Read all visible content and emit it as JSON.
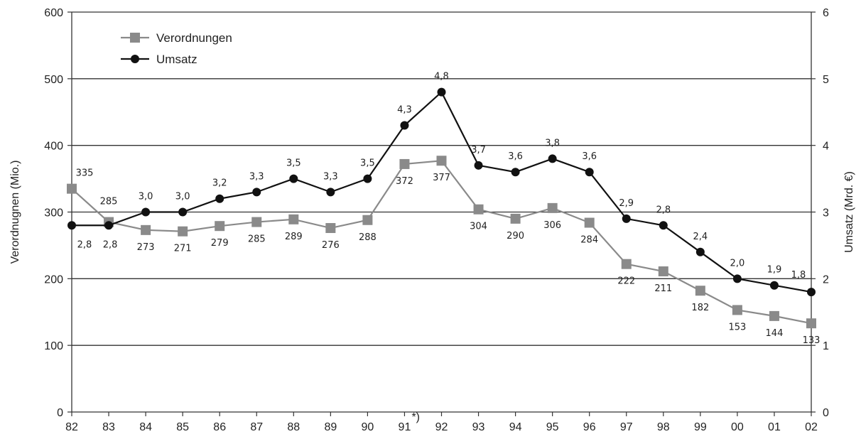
{
  "chart_data": {
    "type": "line",
    "categories": [
      "82",
      "83",
      "84",
      "85",
      "86",
      "87",
      "88",
      "89",
      "90",
      "91",
      "92",
      "93",
      "94",
      "95",
      "96",
      "97",
      "98",
      "99",
      "00",
      "01",
      "02"
    ],
    "footnote_marker": "*)",
    "footnote_category_index": 9,
    "series": [
      {
        "name": "Verordnungen",
        "axis": "left",
        "color": "#8a8a8a",
        "marker": "square",
        "values": [
          335,
          285,
          273,
          271,
          279,
          285,
          289,
          276,
          288,
          372,
          377,
          304,
          290,
          306,
          284,
          222,
          211,
          182,
          153,
          144,
          133
        ],
        "labels": [
          "335",
          "285",
          "273",
          "271",
          "279",
          "285",
          "289",
          "276",
          "288",
          "372",
          "377",
          "304",
          "290",
          "306",
          "284",
          "222",
          "211",
          "182",
          "153",
          "144",
          "133"
        ]
      },
      {
        "name": "Umsatz",
        "axis": "right",
        "color": "#111111",
        "marker": "circle",
        "values": [
          2.8,
          2.8,
          3.0,
          3.0,
          3.2,
          3.3,
          3.5,
          3.3,
          3.5,
          4.3,
          4.8,
          3.7,
          3.6,
          3.8,
          3.6,
          2.9,
          2.8,
          2.4,
          2.0,
          1.9,
          1.8
        ],
        "labels": [
          "2,8",
          "2,8",
          "3,0",
          "3,0",
          "3,2",
          "3,3",
          "3,5",
          "3,3",
          "3,5",
          "4,3",
          "4,8",
          "3,7",
          "3,6",
          "3,8",
          "3,6",
          "2,9",
          "2,8",
          "2,4",
          "2,0",
          "1,9",
          "1,8"
        ]
      }
    ],
    "ylabel": "Verordnugnen (Mio.)",
    "ylabel_right": "Umsatz (Mrd. €)",
    "ylim": [
      0,
      600
    ],
    "ylim_right": [
      0,
      6
    ],
    "yticks": [
      "0",
      "100",
      "200",
      "300",
      "400",
      "500",
      "600"
    ],
    "yticks_right": [
      "0",
      "1",
      "2",
      "3",
      "4",
      "5",
      "6"
    ],
    "grid": true,
    "legend_position": "top-left"
  }
}
